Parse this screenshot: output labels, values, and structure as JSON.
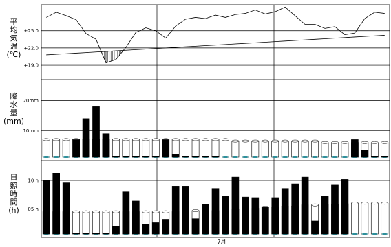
{
  "chart_data": [
    {
      "type": "line",
      "ylabel": [
        "平",
        "均",
        "気",
        "温",
        "(℃)"
      ],
      "yticks": [
        "+25.0",
        "+22.0",
        "+19.0"
      ],
      "ytick_values": [
        25,
        22,
        19
      ],
      "ylim": [
        16.5,
        29.5
      ],
      "series": [
        {
          "values": [
            27.3,
            28.2,
            27.6,
            26.9,
            24.5,
            23.5,
            19.4,
            20.0,
            22.1,
            24.7,
            25.5,
            25.0,
            23.7,
            25.8,
            27.0,
            27.3,
            27.1,
            27.7,
            27.3,
            27.8,
            28.0,
            28.6,
            27.9,
            28.3,
            29.1,
            27.6,
            26.1,
            26.1,
            25.4,
            25.7,
            24.3,
            24.6,
            27.1,
            28.2,
            28.0
          ]
        },
        {
          "values": [
            20.8,
            20.9,
            21.0,
            21.1,
            21.2,
            21.3,
            21.4,
            21.5,
            21.6,
            21.7,
            21.8,
            21.9,
            22.0,
            22.1,
            22.2,
            22.3,
            22.4,
            22.5,
            22.6,
            22.7,
            22.8,
            22.9,
            23.0,
            23.1,
            23.2,
            23.3,
            23.4,
            23.5,
            23.6,
            23.7,
            23.8,
            23.9,
            24.0,
            24.1,
            24.2
          ]
        }
      ]
    },
    {
      "type": "bar",
      "ylabel": [
        "降",
        "水",
        "量",
        "(mm)"
      ],
      "yticks": [
        "20mm",
        "10mm"
      ],
      "ytick_values": [
        20,
        10
      ],
      "ylim": [
        0,
        27
      ],
      "values": [
        0,
        0,
        0,
        7,
        14,
        18,
        9,
        1.5,
        1.5,
        1.5,
        1.5,
        0.5,
        7,
        2,
        0.5,
        0.5,
        0.5,
        0.5,
        0,
        0,
        0,
        0,
        0,
        0,
        0,
        0,
        0,
        0,
        0,
        0,
        0,
        7,
        3.5,
        0.5,
        0.5
      ],
      "normal_values": [
        7,
        7,
        7,
        7,
        7,
        7,
        7,
        7,
        7,
        7,
        7,
        7,
        7,
        7,
        7,
        7,
        7,
        7,
        7,
        6.5,
        6.5,
        6.5,
        6.5,
        6.5,
        6.5,
        6.5,
        6.5,
        6.5,
        6,
        6,
        6,
        6,
        6,
        6,
        6
      ]
    },
    {
      "type": "bar",
      "ylabel": [
        "日",
        "照",
        "時",
        "間",
        "(h)"
      ],
      "yticks": [
        "10 h",
        "05 h"
      ],
      "ytick_values": [
        10,
        5
      ],
      "ylim": [
        0,
        13.5
      ],
      "values": [
        10,
        11.3,
        9.7,
        0.3,
        0.3,
        0.3,
        0.3,
        2,
        8,
        6.4,
        2.3,
        2.6,
        3.2,
        9,
        9,
        3.3,
        5.8,
        8.6,
        7.2,
        10.6,
        7.1,
        7,
        5.3,
        7,
        8.6,
        9.4,
        10.6,
        2.9,
        7.2,
        9.3,
        10.2,
        0,
        0,
        0,
        0
      ],
      "normal_values": [
        4.5,
        4.5,
        4.5,
        4.5,
        4.5,
        4.5,
        4.5,
        4.5,
        4.5,
        4.5,
        4.5,
        4.5,
        4.5,
        4.5,
        4.5,
        4.7,
        4.7,
        4.7,
        4.9,
        4.9,
        5.1,
        5.1,
        5.3,
        5.3,
        5.5,
        5.5,
        5.7,
        5.7,
        5.8,
        5.8,
        5.9,
        6,
        6,
        6,
        6
      ]
    }
  ],
  "xlabel": "7月"
}
